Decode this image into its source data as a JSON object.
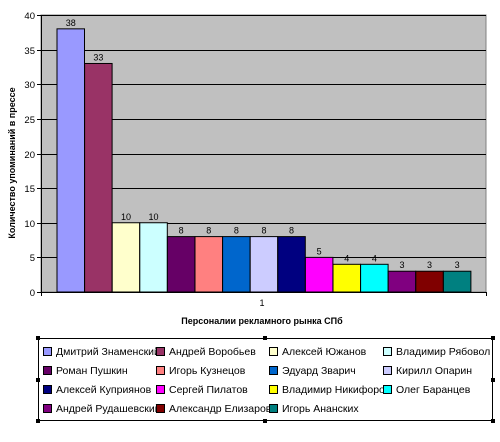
{
  "chart_data": {
    "type": "bar",
    "categories": [
      "1"
    ],
    "xlabel": "Персоналии рекламного рынка СПб",
    "ylabel": "Количество упоминаний в прессе",
    "ylim": [
      0,
      40
    ],
    "yticks": [
      0,
      5,
      10,
      15,
      20,
      25,
      30,
      35,
      40
    ],
    "grid": true,
    "plot_background": "#c0c0c0",
    "legend_position": "bottom",
    "series": [
      {
        "name": "Дмитрий Знаменский",
        "values": [
          38
        ],
        "color": "#9999ff"
      },
      {
        "name": "Андрей Воробьев",
        "values": [
          33
        ],
        "color": "#993366"
      },
      {
        "name": "Алексей Южанов",
        "values": [
          10
        ],
        "color": "#ffffcc"
      },
      {
        "name": "Владимир Рябовол",
        "values": [
          10
        ],
        "color": "#ccffff"
      },
      {
        "name": "Роман Пушкин",
        "values": [
          8
        ],
        "color": "#660066"
      },
      {
        "name": "Игорь Кузнецов",
        "values": [
          8
        ],
        "color": "#ff8080"
      },
      {
        "name": "Эдуард Зварич",
        "values": [
          8
        ],
        "color": "#0066cc"
      },
      {
        "name": "Кирилл Опарин",
        "values": [
          8
        ],
        "color": "#ccccff"
      },
      {
        "name": "Алексей Куприянов",
        "values": [
          8
        ],
        "color": "#000080"
      },
      {
        "name": "Сергей Пилатов",
        "values": [
          5
        ],
        "color": "#ff00ff"
      },
      {
        "name": "Владимир Никифоров",
        "values": [
          4
        ],
        "color": "#ffff00"
      },
      {
        "name": "Олег Баранцев",
        "values": [
          4
        ],
        "color": "#00ffff"
      },
      {
        "name": "Андрей Рудашевский",
        "values": [
          3
        ],
        "color": "#800080"
      },
      {
        "name": "Александр Елизаров",
        "values": [
          3
        ],
        "color": "#800000"
      },
      {
        "name": "Игорь Ананских",
        "values": [
          3
        ],
        "color": "#008080"
      }
    ]
  }
}
